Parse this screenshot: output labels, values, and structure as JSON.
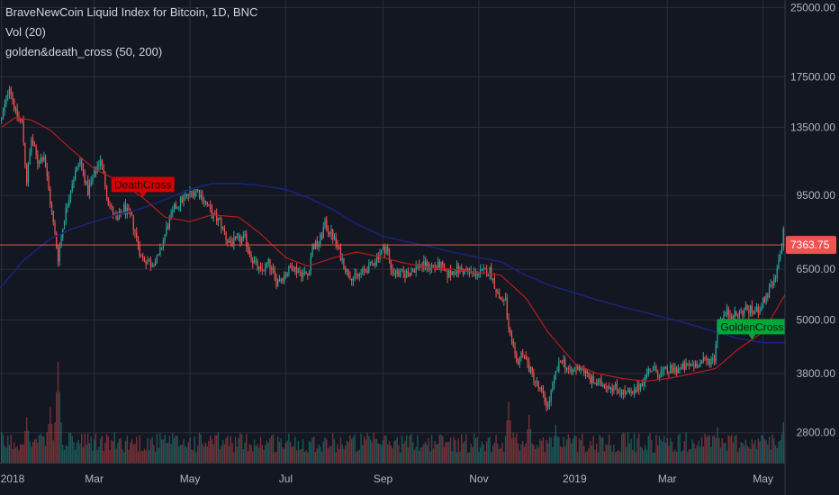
{
  "chart_data": {
    "type": "candlestick",
    "title": "BraveNewCoin Liquid Index for Bitcoin, 1D, BNC",
    "indicators": [
      "Vol (20)",
      "golden&death_cross (50, 200)"
    ],
    "y_scale": "log",
    "ylim": [
      2400,
      26000
    ],
    "y_ticks": [
      2800,
      3800,
      5000,
      6500,
      9500,
      13500,
      17500,
      25000
    ],
    "y_tick_labels": [
      "2800.00",
      "3800.00",
      "5000.00",
      "6500.00",
      "9500.00",
      "13500.00",
      "17500.00",
      "25000.00"
    ],
    "x_ticks": [
      "2018",
      "Mar",
      "May",
      "Jul",
      "Sep",
      "Nov",
      "2019",
      "Mar",
      "May"
    ],
    "x_tick_dates": [
      "2018-01-01",
      "2018-03-01",
      "2018-05-01",
      "2018-07-01",
      "2018-09-01",
      "2018-11-01",
      "2019-01-01",
      "2019-03-01",
      "2019-05-01"
    ],
    "x_range": [
      "2017-12-31",
      "2019-05-15"
    ],
    "last_price": 7363.75,
    "last_price_label": "7363.75",
    "colors": {
      "up": "#26a69a",
      "down": "#ef5350",
      "ma50": "#b71c1c",
      "ma200": "#1a237e",
      "price_line": "#ef5350",
      "background": "#131722",
      "grid": "#2a2e39"
    },
    "price_path": [
      [
        "2018-01-01",
        14000
      ],
      [
        "2018-01-06",
        16800
      ],
      [
        "2018-01-10",
        14500
      ],
      [
        "2018-01-14",
        13800
      ],
      [
        "2018-01-17",
        10200
      ],
      [
        "2018-01-20",
        12700
      ],
      [
        "2018-01-24",
        11300
      ],
      [
        "2018-01-28",
        11700
      ],
      [
        "2018-02-01",
        9200
      ],
      [
        "2018-02-06",
        6900
      ],
      [
        "2018-02-10",
        8500
      ],
      [
        "2018-02-15",
        10200
      ],
      [
        "2018-02-20",
        11400
      ],
      [
        "2018-02-25",
        9700
      ],
      [
        "2018-03-05",
        11500
      ],
      [
        "2018-03-10",
        9200
      ],
      [
        "2018-03-15",
        8300
      ],
      [
        "2018-03-20",
        8900
      ],
      [
        "2018-03-25",
        8400
      ],
      [
        "2018-03-31",
        6900
      ],
      [
        "2018-04-06",
        6700
      ],
      [
        "2018-04-11",
        6900
      ],
      [
        "2018-04-16",
        8000
      ],
      [
        "2018-04-21",
        8900
      ],
      [
        "2018-04-26",
        9300
      ],
      [
        "2018-05-05",
        9800
      ],
      [
        "2018-05-10",
        9300
      ],
      [
        "2018-05-15",
        8600
      ],
      [
        "2018-05-20",
        8300
      ],
      [
        "2018-05-25",
        7500
      ],
      [
        "2018-05-30",
        7500
      ],
      [
        "2018-06-05",
        7600
      ],
      [
        "2018-06-10",
        6800
      ],
      [
        "2018-06-15",
        6400
      ],
      [
        "2018-06-20",
        6700
      ],
      [
        "2018-06-25",
        6100
      ],
      [
        "2018-06-30",
        6300
      ],
      [
        "2018-07-05",
        6600
      ],
      [
        "2018-07-10",
        6400
      ],
      [
        "2018-07-15",
        6300
      ],
      [
        "2018-07-18",
        7300
      ],
      [
        "2018-07-22",
        7400
      ],
      [
        "2018-07-26",
        8200
      ],
      [
        "2018-07-31",
        7700
      ],
      [
        "2018-08-04",
        7100
      ],
      [
        "2018-08-09",
        6400
      ],
      [
        "2018-08-14",
        6200
      ],
      [
        "2018-08-19",
        6400
      ],
      [
        "2018-08-24",
        6600
      ],
      [
        "2018-08-29",
        7000
      ],
      [
        "2018-09-03",
        7300
      ],
      [
        "2018-09-06",
        6500
      ],
      [
        "2018-09-12",
        6300
      ],
      [
        "2018-09-18",
        6400
      ],
      [
        "2018-09-24",
        6650
      ],
      [
        "2018-09-30",
        6600
      ],
      [
        "2018-10-08",
        6600
      ],
      [
        "2018-10-11",
        6300
      ],
      [
        "2018-10-18",
        6500
      ],
      [
        "2018-10-25",
        6400
      ],
      [
        "2018-11-01",
        6350
      ],
      [
        "2018-11-08",
        6450
      ],
      [
        "2018-11-14",
        5600
      ],
      [
        "2018-11-18",
        5500
      ],
      [
        "2018-11-20",
        4700
      ],
      [
        "2018-11-25",
        4000
      ],
      [
        "2018-11-29",
        4250
      ],
      [
        "2018-12-03",
        3900
      ],
      [
        "2018-12-08",
        3600
      ],
      [
        "2018-12-15",
        3200
      ],
      [
        "2018-12-20",
        3800
      ],
      [
        "2018-12-24",
        4100
      ],
      [
        "2018-12-29",
        3800
      ],
      [
        "2019-01-05",
        3950
      ],
      [
        "2019-01-10",
        3700
      ],
      [
        "2019-01-15",
        3600
      ],
      [
        "2019-01-20",
        3600
      ],
      [
        "2019-01-25",
        3550
      ],
      [
        "2019-02-01",
        3450
      ],
      [
        "2019-02-07",
        3400
      ],
      [
        "2019-02-12",
        3600
      ],
      [
        "2019-02-18",
        3900
      ],
      [
        "2019-02-24",
        3800
      ],
      [
        "2019-03-01",
        3850
      ],
      [
        "2019-03-10",
        3900
      ],
      [
        "2019-03-20",
        4000
      ],
      [
        "2019-03-31",
        4100
      ],
      [
        "2019-04-02",
        4900
      ],
      [
        "2019-04-08",
        5200
      ],
      [
        "2019-04-14",
        5100
      ],
      [
        "2019-04-20",
        5300
      ],
      [
        "2019-04-26",
        5200
      ],
      [
        "2019-04-30",
        5400
      ],
      [
        "2019-05-05",
        5800
      ],
      [
        "2019-05-09",
        6200
      ],
      [
        "2019-05-12",
        7000
      ],
      [
        "2019-05-14",
        7900
      ],
      [
        "2019-05-15",
        7364
      ]
    ],
    "ma50_path": [
      [
        "2018-01-01",
        13500
      ],
      [
        "2018-01-10",
        14200
      ],
      [
        "2018-01-20",
        14000
      ],
      [
        "2018-02-01",
        13300
      ],
      [
        "2018-02-15",
        12000
      ],
      [
        "2018-03-01",
        10900
      ],
      [
        "2018-03-15",
        10300
      ],
      [
        "2018-04-01",
        9400
      ],
      [
        "2018-04-15",
        8500
      ],
      [
        "2018-05-01",
        8300
      ],
      [
        "2018-05-15",
        8600
      ],
      [
        "2018-06-01",
        8500
      ],
      [
        "2018-06-15",
        7800
      ],
      [
        "2018-07-01",
        6900
      ],
      [
        "2018-07-15",
        6600
      ],
      [
        "2018-08-01",
        6900
      ],
      [
        "2018-08-15",
        7100
      ],
      [
        "2018-09-01",
        6900
      ],
      [
        "2018-09-15",
        6700
      ],
      [
        "2018-10-01",
        6550
      ],
      [
        "2018-10-15",
        6500
      ],
      [
        "2018-11-01",
        6400
      ],
      [
        "2018-11-15",
        6300
      ],
      [
        "2018-12-01",
        5600
      ],
      [
        "2018-12-15",
        4700
      ],
      [
        "2019-01-01",
        4000
      ],
      [
        "2019-01-15",
        3800
      ],
      [
        "2019-02-01",
        3700
      ],
      [
        "2019-02-15",
        3650
      ],
      [
        "2019-03-01",
        3700
      ],
      [
        "2019-03-15",
        3780
      ],
      [
        "2019-04-01",
        3900
      ],
      [
        "2019-04-15",
        4300
      ],
      [
        "2019-05-01",
        4700
      ],
      [
        "2019-05-15",
        5700
      ]
    ],
    "ma200_path": [
      [
        "2017-12-31",
        5900
      ],
      [
        "2018-01-15",
        6800
      ],
      [
        "2018-02-01",
        7600
      ],
      [
        "2018-02-15",
        8000
      ],
      [
        "2018-03-01",
        8300
      ],
      [
        "2018-03-15",
        8600
      ],
      [
        "2018-04-01",
        8900
      ],
      [
        "2018-04-15",
        9300
      ],
      [
        "2018-05-01",
        9800
      ],
      [
        "2018-05-15",
        10100
      ],
      [
        "2018-06-01",
        10100
      ],
      [
        "2018-06-15",
        10000
      ],
      [
        "2018-07-01",
        9800
      ],
      [
        "2018-07-15",
        9400
      ],
      [
        "2018-08-01",
        8800
      ],
      [
        "2018-08-15",
        8200
      ],
      [
        "2018-09-01",
        7700
      ],
      [
        "2018-09-15",
        7500
      ],
      [
        "2018-10-01",
        7300
      ],
      [
        "2018-10-15",
        7100
      ],
      [
        "2018-11-01",
        6900
      ],
      [
        "2018-11-15",
        6750
      ],
      [
        "2018-12-01",
        6300
      ],
      [
        "2018-12-15",
        6000
      ],
      [
        "2019-01-01",
        5750
      ],
      [
        "2019-01-15",
        5550
      ],
      [
        "2019-02-01",
        5350
      ],
      [
        "2019-02-15",
        5200
      ],
      [
        "2019-03-01",
        5050
      ],
      [
        "2019-03-15",
        4900
      ],
      [
        "2019-04-01",
        4700
      ],
      [
        "2019-04-15",
        4550
      ],
      [
        "2019-05-01",
        4450
      ],
      [
        "2019-05-15",
        4450
      ]
    ],
    "signals": [
      {
        "label": "DeathCross",
        "date": "2018-04-01",
        "price": 9400,
        "color": "#d50000"
      },
      {
        "label": "GoldenCross",
        "date": "2019-04-24",
        "price": 4520,
        "color": "#00a838"
      }
    ],
    "volume_spikes": [
      [
        "2018-02-06",
        4.0
      ],
      [
        "2018-02-01",
        2.2
      ],
      [
        "2018-11-20",
        2.4
      ],
      [
        "2018-12-03",
        1.9
      ],
      [
        "2018-01-17",
        1.8
      ],
      [
        "2019-04-02",
        1.4
      ],
      [
        "2019-05-14",
        1.6
      ],
      [
        "2018-12-20",
        1.5
      ]
    ]
  }
}
